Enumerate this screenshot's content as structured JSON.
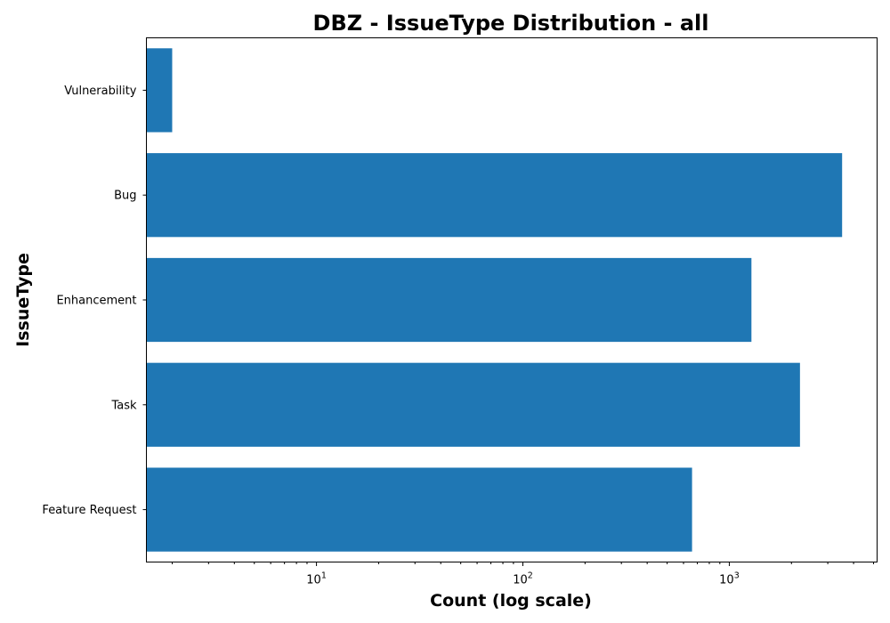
{
  "chart_data": {
    "type": "bar",
    "orientation": "horizontal",
    "title": "DBZ - IssueType Distribution - all",
    "xlabel": "Count (log scale)",
    "ylabel": "IssueType",
    "x_scale": "log",
    "xlim": [
      1.5,
      5200
    ],
    "x_major_ticks": [
      10,
      100,
      1000
    ],
    "x_tick_labels": [
      {
        "base": "10",
        "exp": "1"
      },
      {
        "base": "10",
        "exp": "2"
      },
      {
        "base": "10",
        "exp": "3"
      }
    ],
    "categories": [
      "Feature Request",
      "Task",
      "Enhancement",
      "Bug",
      "Vulnerability"
    ],
    "values": [
      660,
      2200,
      1280,
      3520,
      2
    ],
    "bar_color": "#1f77b4",
    "grid": false,
    "legend": "none"
  }
}
